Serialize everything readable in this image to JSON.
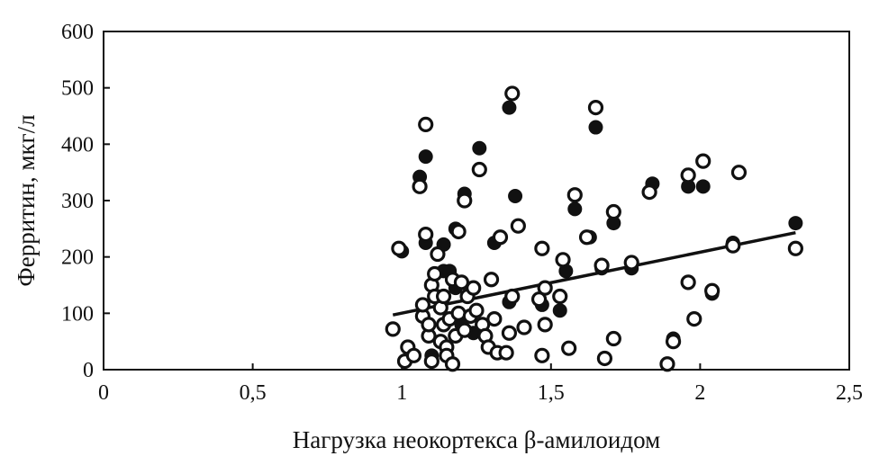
{
  "chart_data": {
    "type": "scatter",
    "title": "",
    "xlabel": "Нагрузка неокортекса β-амилоидом",
    "ylabel": "Ферритин, мкг/л",
    "xlim": [
      0,
      2.5
    ],
    "ylim": [
      0,
      600
    ],
    "x_ticks": [
      {
        "value": 0,
        "label": "0"
      },
      {
        "value": 0.5,
        "label": "0,5"
      },
      {
        "value": 1,
        "label": "1"
      },
      {
        "value": 1.5,
        "label": "1,5"
      },
      {
        "value": 2,
        "label": "2"
      },
      {
        "value": 2.5,
        "label": "2,5"
      }
    ],
    "y_ticks": [
      {
        "value": 0,
        "label": "0"
      },
      {
        "value": 100,
        "label": "100"
      },
      {
        "value": 200,
        "label": "200"
      },
      {
        "value": 300,
        "label": "300"
      },
      {
        "value": 400,
        "label": "400"
      },
      {
        "value": 500,
        "label": "500"
      },
      {
        "value": 600,
        "label": "600"
      }
    ],
    "grid": false,
    "legend": "none",
    "series": [
      {
        "marker": "filled-circle",
        "color": "#111111",
        "points": [
          [
            1.0,
            210
          ],
          [
            1.06,
            342
          ],
          [
            1.08,
            378
          ],
          [
            1.08,
            225
          ],
          [
            1.14,
            222
          ],
          [
            1.14,
            175
          ],
          [
            1.16,
            175
          ],
          [
            1.18,
            145
          ],
          [
            1.18,
            250
          ],
          [
            1.21,
            312
          ],
          [
            1.26,
            393
          ],
          [
            1.31,
            225
          ],
          [
            1.36,
            465
          ],
          [
            1.38,
            308
          ],
          [
            1.36,
            120
          ],
          [
            1.47,
            115
          ],
          [
            1.53,
            105
          ],
          [
            1.55,
            175
          ],
          [
            1.58,
            285
          ],
          [
            1.63,
            235
          ],
          [
            1.65,
            430
          ],
          [
            1.67,
            180
          ],
          [
            1.71,
            260
          ],
          [
            1.77,
            180
          ],
          [
            1.84,
            330
          ],
          [
            1.91,
            55
          ],
          [
            1.96,
            325
          ],
          [
            2.01,
            325
          ],
          [
            2.04,
            135
          ],
          [
            2.11,
            225
          ],
          [
            2.32,
            260
          ],
          [
            1.1,
            25
          ],
          [
            1.12,
            130
          ],
          [
            1.2,
            80
          ],
          [
            1.24,
            65
          ]
        ]
      },
      {
        "marker": "open-circle",
        "color": "#111111",
        "points": [
          [
            0.97,
            72
          ],
          [
            0.99,
            215
          ],
          [
            1.01,
            15
          ],
          [
            1.02,
            40
          ],
          [
            1.04,
            25
          ],
          [
            1.06,
            325
          ],
          [
            1.07,
            95
          ],
          [
            1.07,
            115
          ],
          [
            1.08,
            435
          ],
          [
            1.08,
            240
          ],
          [
            1.09,
            60
          ],
          [
            1.09,
            80
          ],
          [
            1.1,
            15
          ],
          [
            1.1,
            150
          ],
          [
            1.11,
            130
          ],
          [
            1.11,
            170
          ],
          [
            1.12,
            205
          ],
          [
            1.13,
            50
          ],
          [
            1.13,
            110
          ],
          [
            1.14,
            80
          ],
          [
            1.14,
            130
          ],
          [
            1.15,
            40
          ],
          [
            1.15,
            25
          ],
          [
            1.16,
            90
          ],
          [
            1.17,
            10
          ],
          [
            1.17,
            160
          ],
          [
            1.18,
            60
          ],
          [
            1.19,
            100
          ],
          [
            1.19,
            245
          ],
          [
            1.2,
            155
          ],
          [
            1.21,
            300
          ],
          [
            1.21,
            70
          ],
          [
            1.22,
            130
          ],
          [
            1.23,
            95
          ],
          [
            1.24,
            145
          ],
          [
            1.25,
            105
          ],
          [
            1.26,
            355
          ],
          [
            1.27,
            80
          ],
          [
            1.28,
            60
          ],
          [
            1.29,
            40
          ],
          [
            1.3,
            160
          ],
          [
            1.31,
            90
          ],
          [
            1.32,
            30
          ],
          [
            1.33,
            235
          ],
          [
            1.35,
            30
          ],
          [
            1.36,
            65
          ],
          [
            1.37,
            490
          ],
          [
            1.37,
            130
          ],
          [
            1.39,
            255
          ],
          [
            1.41,
            75
          ],
          [
            1.46,
            125
          ],
          [
            1.47,
            215
          ],
          [
            1.47,
            25
          ],
          [
            1.48,
            145
          ],
          [
            1.48,
            80
          ],
          [
            1.53,
            130
          ],
          [
            1.54,
            195
          ],
          [
            1.56,
            38
          ],
          [
            1.58,
            310
          ],
          [
            1.62,
            235
          ],
          [
            1.65,
            465
          ],
          [
            1.67,
            185
          ],
          [
            1.68,
            20
          ],
          [
            1.71,
            280
          ],
          [
            1.71,
            55
          ],
          [
            1.77,
            190
          ],
          [
            1.83,
            315
          ],
          [
            1.89,
            10
          ],
          [
            1.91,
            50
          ],
          [
            1.96,
            345
          ],
          [
            1.96,
            155
          ],
          [
            1.98,
            90
          ],
          [
            2.01,
            370
          ],
          [
            2.04,
            140
          ],
          [
            2.11,
            220
          ],
          [
            2.13,
            350
          ],
          [
            2.32,
            215
          ]
        ]
      }
    ],
    "trendline": {
      "x": [
        0.97,
        2.32
      ],
      "y": [
        97,
        243
      ],
      "style": "solid"
    }
  }
}
